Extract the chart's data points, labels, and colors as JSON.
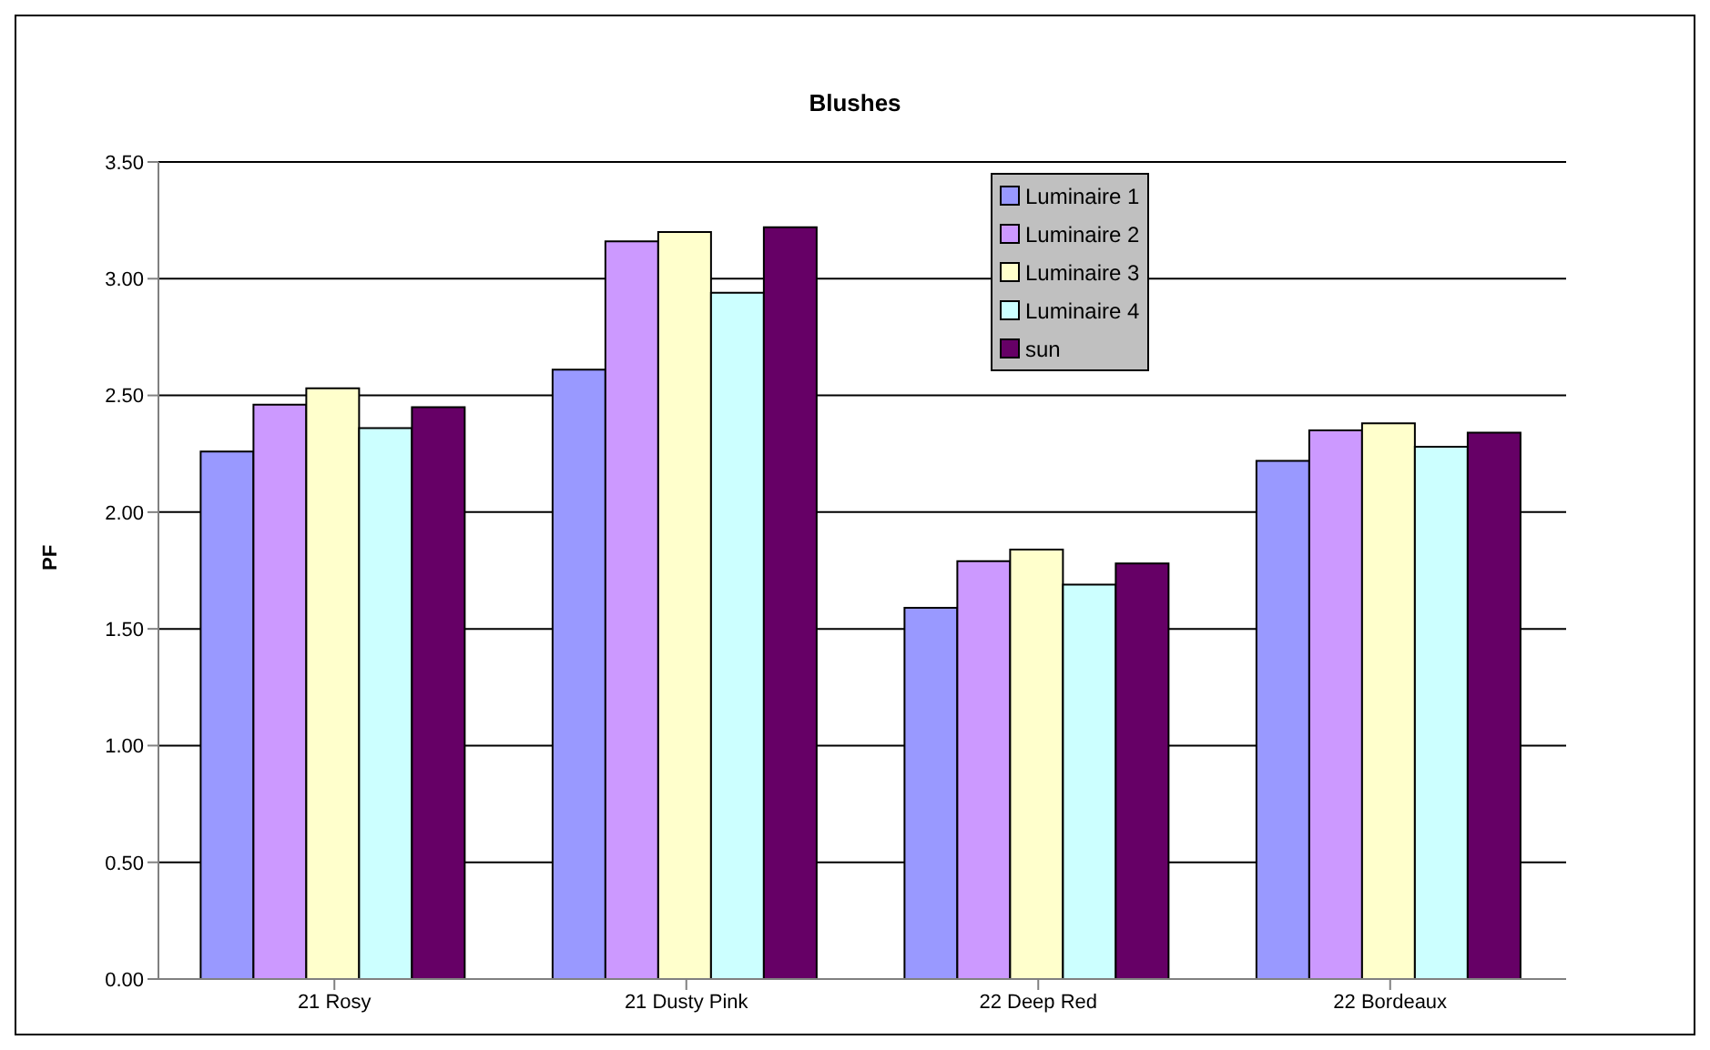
{
  "chart_data": {
    "type": "bar",
    "title": "Blushes",
    "ylabel": "PF",
    "categories": [
      "21 Rosy",
      "21 Dusty Pink",
      "22 Deep Red",
      "22 Bordeaux"
    ],
    "series": [
      {
        "name": "Luminaire 1",
        "color": "#9999ff",
        "values": [
          2.26,
          2.61,
          1.59,
          2.22
        ]
      },
      {
        "name": "Luminaire 2",
        "color": "#cc99ff",
        "values": [
          2.46,
          3.16,
          1.79,
          2.35
        ]
      },
      {
        "name": "Luminaire 3",
        "color": "#ffffcc",
        "values": [
          2.53,
          3.2,
          1.84,
          2.38
        ]
      },
      {
        "name": "Luminaire 4",
        "color": "#ccffff",
        "values": [
          2.36,
          2.94,
          1.69,
          2.28
        ]
      },
      {
        "name": "sun",
        "color": "#660066",
        "values": [
          2.45,
          3.22,
          1.78,
          2.34
        ]
      }
    ],
    "ylim": [
      0,
      3.5
    ],
    "yticks": [
      {
        "value": 0,
        "label": "0.00"
      },
      {
        "value": 0.5,
        "label": "0.50"
      },
      {
        "value": 1,
        "label": "1.00"
      },
      {
        "value": 1.5,
        "label": "1.50"
      },
      {
        "value": 2,
        "label": "2.00"
      },
      {
        "value": 2.5,
        "label": "2.50"
      },
      {
        "value": 3,
        "label": "3.00"
      },
      {
        "value": 3.5,
        "label": "3.50"
      }
    ],
    "grid": "y",
    "legend": "top"
  }
}
